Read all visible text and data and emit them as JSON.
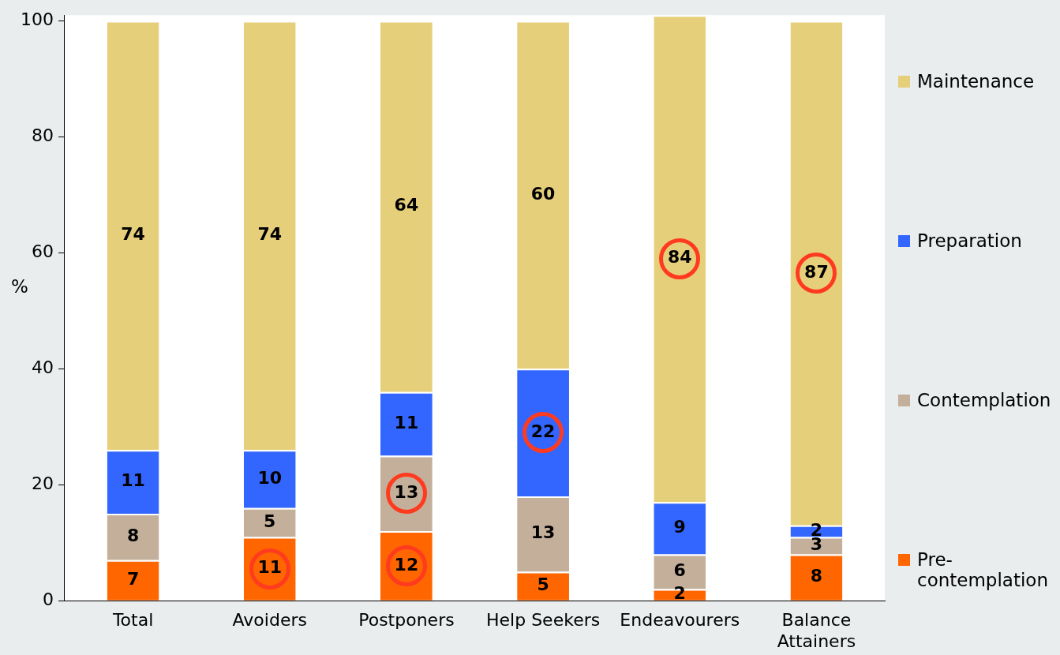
{
  "chart_data": {
    "type": "bar",
    "stacked": true,
    "ylabel": "%",
    "categories": [
      "Total",
      "Avoiders",
      "Postponers",
      "Help Seekers",
      "Endeavourers",
      "Balance Attainers"
    ],
    "series": [
      {
        "name": "Pre-contemplation",
        "color": "#ff6600",
        "values": [
          7,
          11,
          12,
          5,
          2,
          8
        ]
      },
      {
        "name": "Contemplation",
        "color": "#c4b09a",
        "values": [
          8,
          5,
          13,
          13,
          6,
          3
        ]
      },
      {
        "name": "Preparation",
        "color": "#3366ff",
        "values": [
          11,
          10,
          11,
          22,
          9,
          2
        ]
      },
      {
        "name": "Maintenance",
        "color": "#e6cf7a",
        "values": [
          74,
          74,
          64,
          60,
          84,
          87
        ]
      }
    ],
    "ylim": [
      0,
      101
    ],
    "yticks": [
      0,
      20,
      40,
      60,
      80,
      100
    ],
    "data_labels": true,
    "legend": "right",
    "grid": false
  }
}
